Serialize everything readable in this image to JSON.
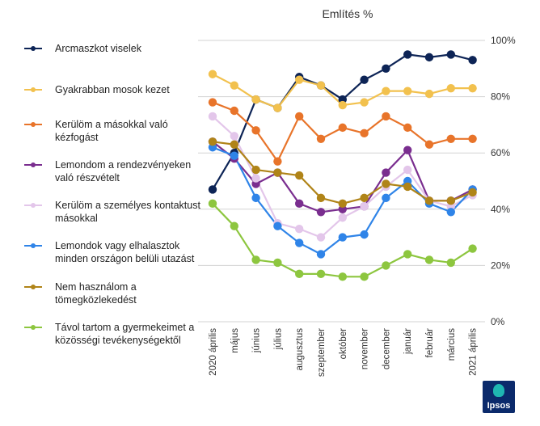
{
  "chart_data": {
    "type": "line",
    "title": "Említés %",
    "categories": [
      "2020 április",
      "május",
      "június",
      "július",
      "augusztus",
      "szeptember",
      "október",
      "november",
      "december",
      "január",
      "február",
      "március",
      "2021 április"
    ],
    "ylim": [
      0,
      100
    ],
    "yticks": [
      "0%",
      "20%",
      "40%",
      "60%",
      "80%",
      "100%"
    ],
    "legend_position": "left",
    "series": [
      {
        "name": "Arcmaszkot viselek",
        "color": "#0d2456",
        "values": [
          47,
          60,
          79,
          76,
          87,
          84,
          79,
          86,
          90,
          95,
          94,
          95,
          93
        ]
      },
      {
        "name": "Gyakrabban mosok kezet",
        "color": "#f2c14e",
        "values": [
          88,
          84,
          79,
          76,
          86,
          84,
          77,
          78,
          82,
          82,
          81,
          83,
          83
        ]
      },
      {
        "name": "Kerülöm a másokkal való kézfogást",
        "color": "#e8742a",
        "values": [
          78,
          75,
          68,
          57,
          73,
          65,
          69,
          67,
          73,
          69,
          63,
          65,
          65
        ]
      },
      {
        "name": "Lemondom a rendezvényeken való részvételt",
        "color": "#7a2e8f",
        "values": [
          64,
          58,
          49,
          53,
          42,
          39,
          40,
          41,
          53,
          61,
          43,
          43,
          47
        ]
      },
      {
        "name": "Kerülöm a személyes kontaktust másokkal",
        "color": "#e3c6ea",
        "values": [
          73,
          66,
          51,
          35,
          33,
          30,
          37,
          41,
          48,
          54,
          43,
          41,
          45
        ]
      },
      {
        "name": "Lemondok vagy elhalasztok minden országon belüli utazást",
        "color": "#2f84e8",
        "values": [
          62,
          59,
          44,
          34,
          28,
          24,
          30,
          31,
          44,
          50,
          42,
          39,
          47
        ]
      },
      {
        "name": "Nem használom a tömegközlekedést",
        "color": "#b08418",
        "values": [
          64,
          63,
          54,
          53,
          52,
          44,
          42,
          44,
          49,
          48,
          43,
          43,
          46
        ]
      },
      {
        "name": "Távol tartom a gyermekeimet a közösségi tevékenységektől",
        "color": "#8dc63f",
        "values": [
          42,
          34,
          22,
          21,
          17,
          17,
          16,
          16,
          20,
          24,
          22,
          21,
          26
        ]
      }
    ]
  },
  "logo": {
    "text": "Ipsos"
  }
}
